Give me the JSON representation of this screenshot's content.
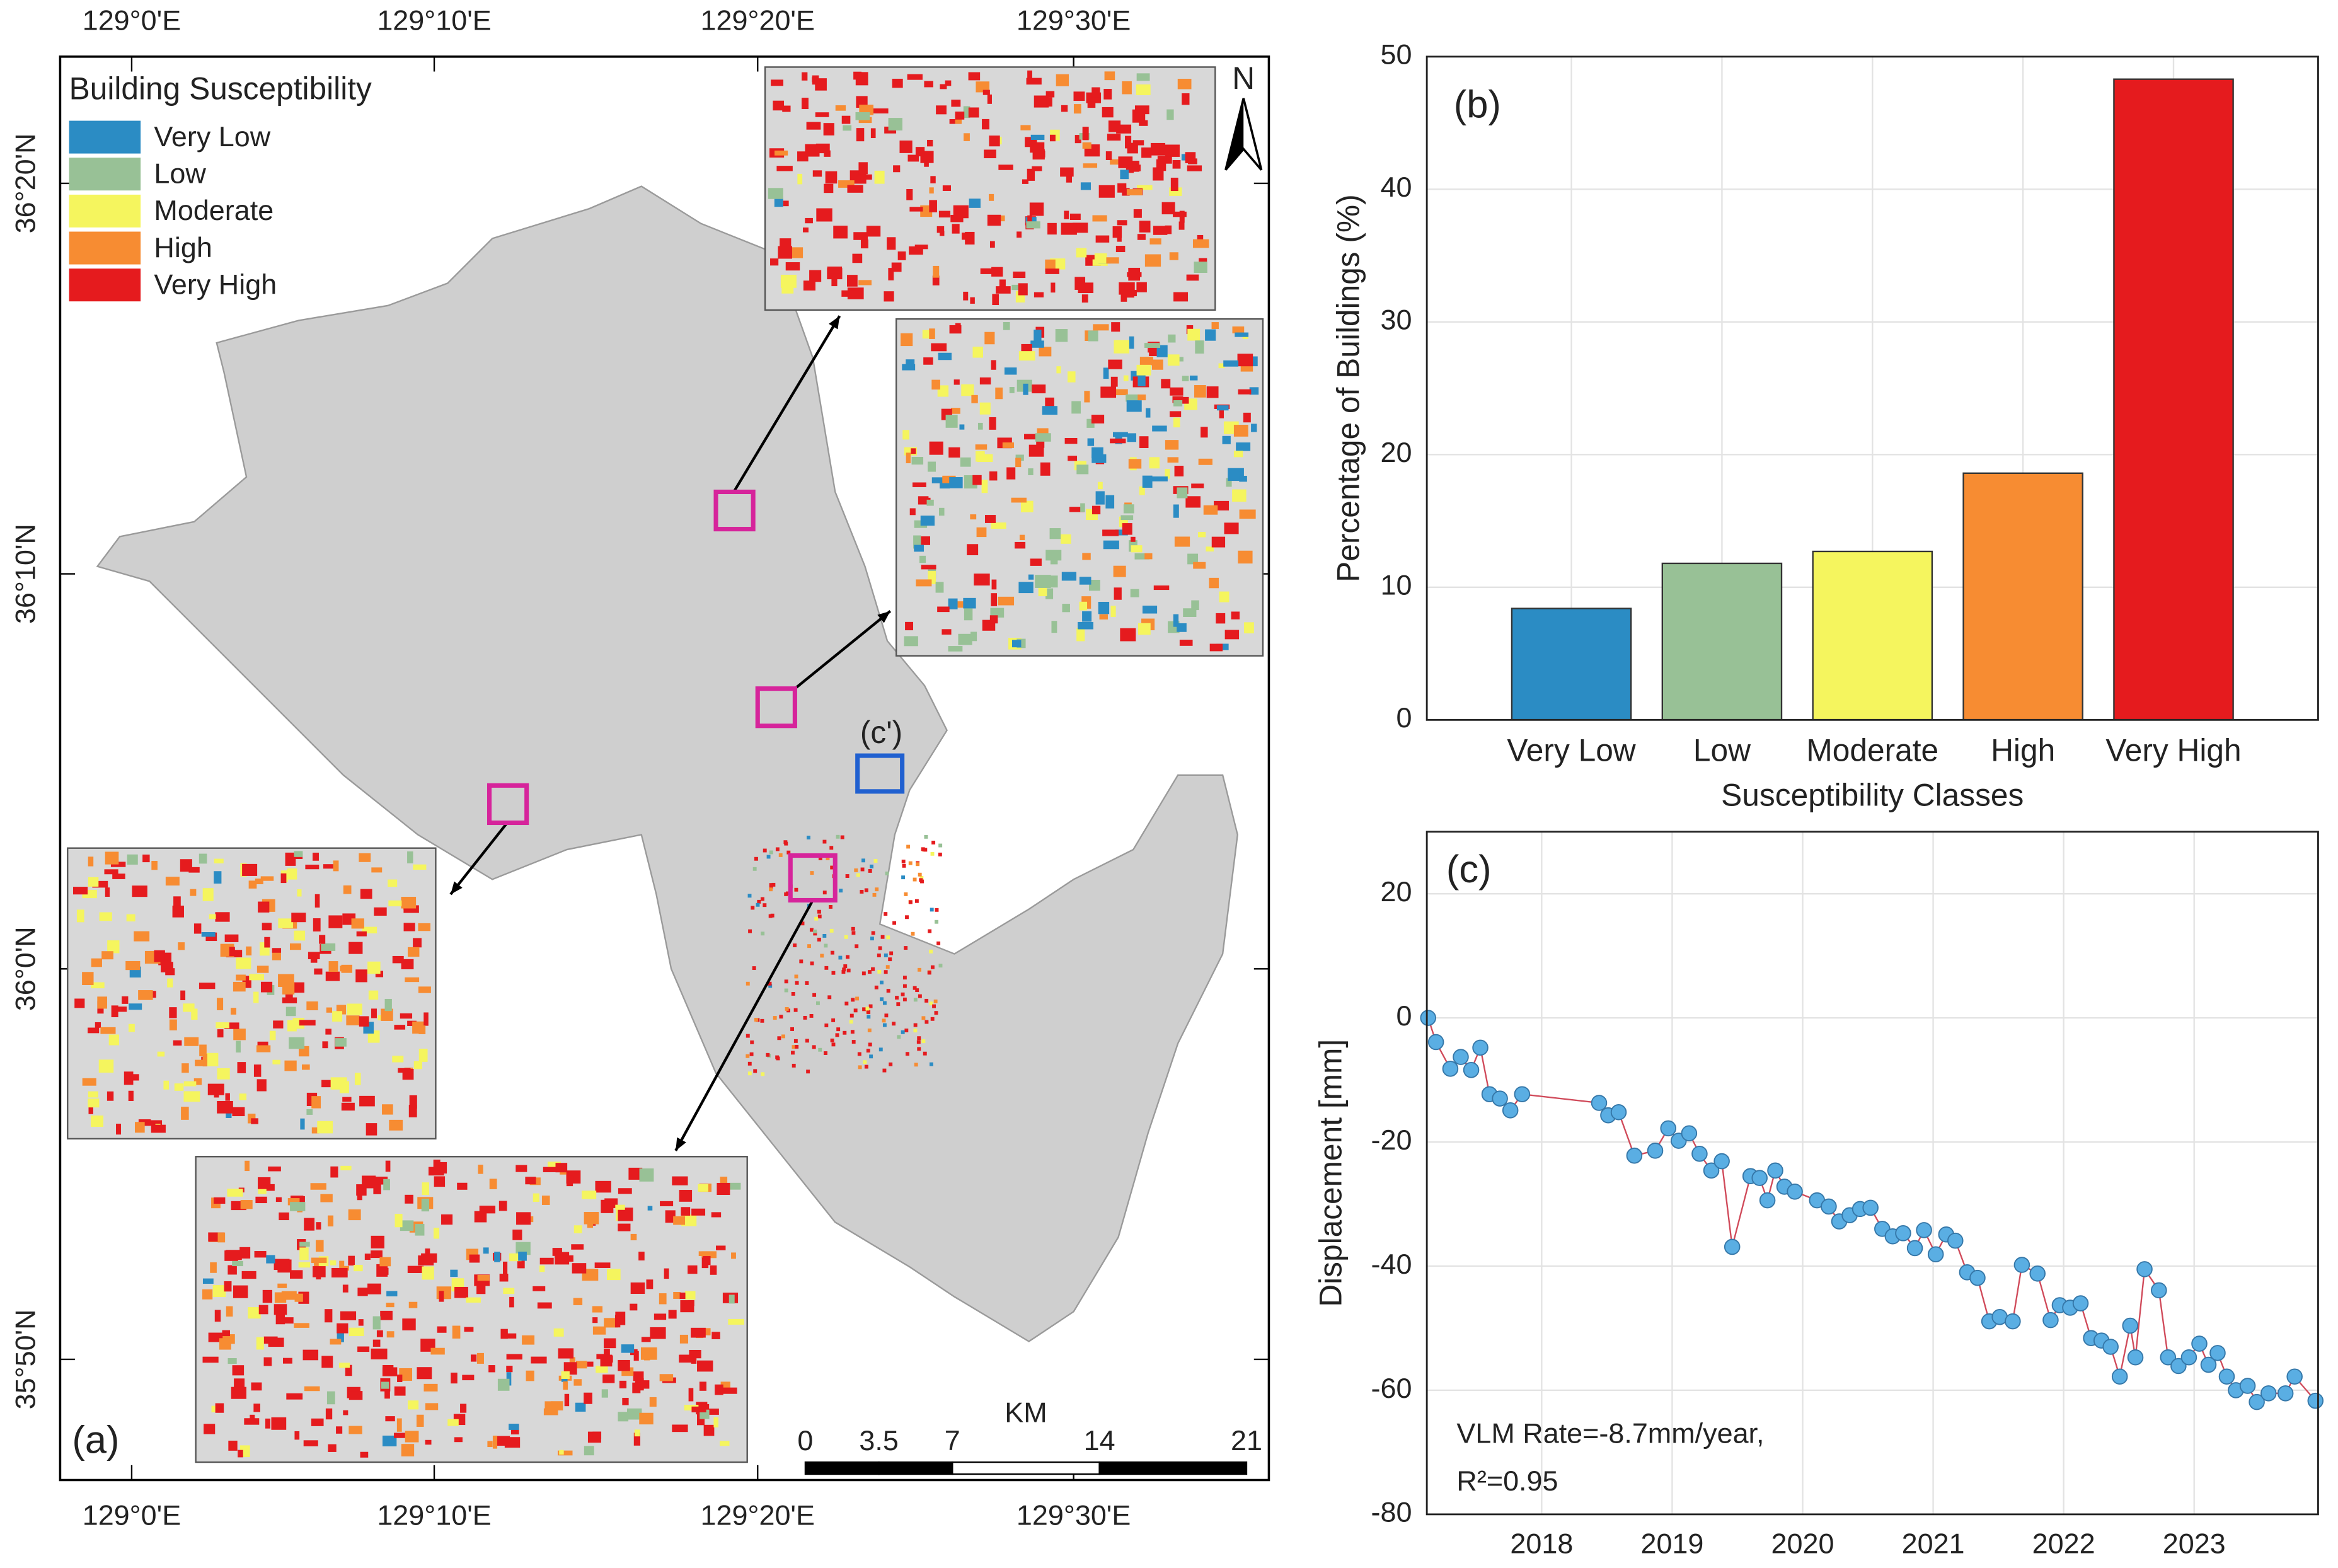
{
  "map": {
    "label": "(a)",
    "legend_title": "Building Susceptibility",
    "legend": [
      {
        "name": "Very Low",
        "color": "#2b8cc4"
      },
      {
        "name": "Low",
        "color": "#98c196"
      },
      {
        "name": "Moderate",
        "color": "#f5f55e"
      },
      {
        "name": "High",
        "color": "#f78c32"
      },
      {
        "name": "Very High",
        "color": "#e51b1e"
      }
    ],
    "lon_labels": [
      "129°0'E",
      "129°10'E",
      "129°20'E",
      "129°30'E"
    ],
    "lat_labels": [
      "36°20'N",
      "36°10'N",
      "36°0'N",
      "35°50'N"
    ],
    "north": "N",
    "callout": "(c')",
    "scale_unit": "KM",
    "scale_ticks": [
      0,
      3.5,
      7,
      14,
      21
    ]
  },
  "chart_data": [
    {
      "type": "bar",
      "label": "(b)",
      "xlabel": "Susceptibility Classes",
      "ylabel": "Percentage of Buildings (%)",
      "categories": [
        "Very Low",
        "Low",
        "Moderate",
        "High",
        "Very High"
      ],
      "values": [
        8.4,
        11.8,
        12.7,
        18.6,
        48.3
      ],
      "colors": [
        "#2b8cc4",
        "#98c196",
        "#f5f55e",
        "#f78c32",
        "#e51b1e"
      ],
      "ylim": [
        0,
        50
      ],
      "yticks": [
        0,
        10,
        20,
        30,
        40,
        50
      ],
      "grid": true
    },
    {
      "type": "line",
      "label": "(c)",
      "ylabel": "Displacement [mm]",
      "x": [
        2017.13,
        2017.19,
        2017.3,
        2017.38,
        2017.46,
        2017.53,
        2017.6,
        2017.68,
        2017.76,
        2017.85,
        2018.44,
        2018.51,
        2018.59,
        2018.71,
        2018.87,
        2018.97,
        2019.05,
        2019.13,
        2019.21,
        2019.3,
        2019.38,
        2019.46,
        2019.6,
        2019.67,
        2019.73,
        2019.79,
        2019.86,
        2019.94,
        2020.11,
        2020.2,
        2020.28,
        2020.36,
        2020.44,
        2020.52,
        2020.61,
        2020.69,
        2020.77,
        2020.86,
        2020.93,
        2021.02,
        2021.1,
        2021.17,
        2021.26,
        2021.34,
        2021.43,
        2021.51,
        2021.61,
        2021.68,
        2021.8,
        2021.9,
        2021.97,
        2022.05,
        2022.13,
        2022.21,
        2022.29,
        2022.36,
        2022.43,
        2022.51,
        2022.55,
        2022.62,
        2022.73,
        2022.8,
        2022.88,
        2022.96,
        2023.04,
        2023.11,
        2023.18,
        2023.25,
        2023.32,
        2023.41,
        2023.48,
        2023.57,
        2023.7,
        2023.77,
        2023.93
      ],
      "values": [
        0,
        -3.9,
        -8.2,
        -6.3,
        -8.4,
        -4.8,
        -12.3,
        -13,
        -14.9,
        -12.3,
        -13.7,
        -15.7,
        -15.2,
        -22.2,
        -21.4,
        -17.8,
        -19.8,
        -18.6,
        -21.9,
        -24.6,
        -23.1,
        -36.9,
        -25.5,
        -25.8,
        -29.4,
        -24.6,
        -27.2,
        -28,
        -29.4,
        -30.4,
        -32.8,
        -31.8,
        -30.8,
        -30.6,
        -34,
        -35.2,
        -34.7,
        -37.1,
        -34.2,
        -38.1,
        -34.9,
        -35.9,
        -41,
        -41.9,
        -48.9,
        -48.2,
        -48.9,
        -39.8,
        -41.2,
        -48.7,
        -46.3,
        -46.7,
        -46,
        -51.6,
        -52,
        -53,
        -57.8,
        -49.6,
        -54.7,
        -40.5,
        -43.9,
        -54.7,
        -56.1,
        -54.7,
        -52.5,
        -55.9,
        -54,
        -57.8,
        -60,
        -59.3,
        -61.9,
        -60.5,
        -60.5,
        -57.8,
        -61.7
      ],
      "color": "#d04a5a",
      "marker_color": "#5aaee3",
      "xlim": [
        2017.12,
        2023.95
      ],
      "xticks": [
        2018,
        2019,
        2020,
        2021,
        2022,
        2023
      ],
      "ylim": [
        -80,
        30
      ],
      "yticks": [
        -80,
        -60,
        -40,
        -20,
        0,
        20
      ],
      "grid": true,
      "annotation": [
        "VLM Rate=-8.7mm/year,",
        "R²=0.95"
      ]
    }
  ]
}
